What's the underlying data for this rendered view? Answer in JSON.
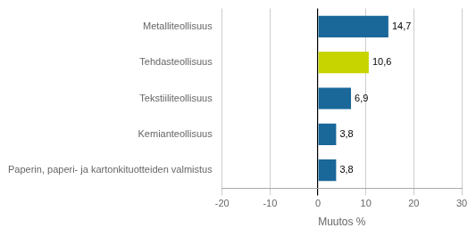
{
  "chart_data": {
    "type": "bar",
    "orientation": "horizontal",
    "categories": [
      "Metalliteollisuus",
      "Tehdasteollisuus",
      "Tekstiiliteollisuus",
      "Kemianteollisuus",
      "Paperin, paperi- ja kartonkituotteiden valmistus"
    ],
    "values": [
      14.7,
      10.6,
      6.9,
      3.8,
      3.8
    ],
    "value_labels": [
      "14,7",
      "10,6",
      "6,9",
      "3,8",
      "3,8"
    ],
    "colors": [
      "#1a6799",
      "#c8d400",
      "#1a6799",
      "#1a6799",
      "#1a6799"
    ],
    "data_labels": true,
    "xlabel": "Muutos %",
    "xlim": [
      -20,
      30
    ],
    "xticks": [
      -20,
      -10,
      0,
      10,
      20,
      30
    ],
    "grid": true
  }
}
